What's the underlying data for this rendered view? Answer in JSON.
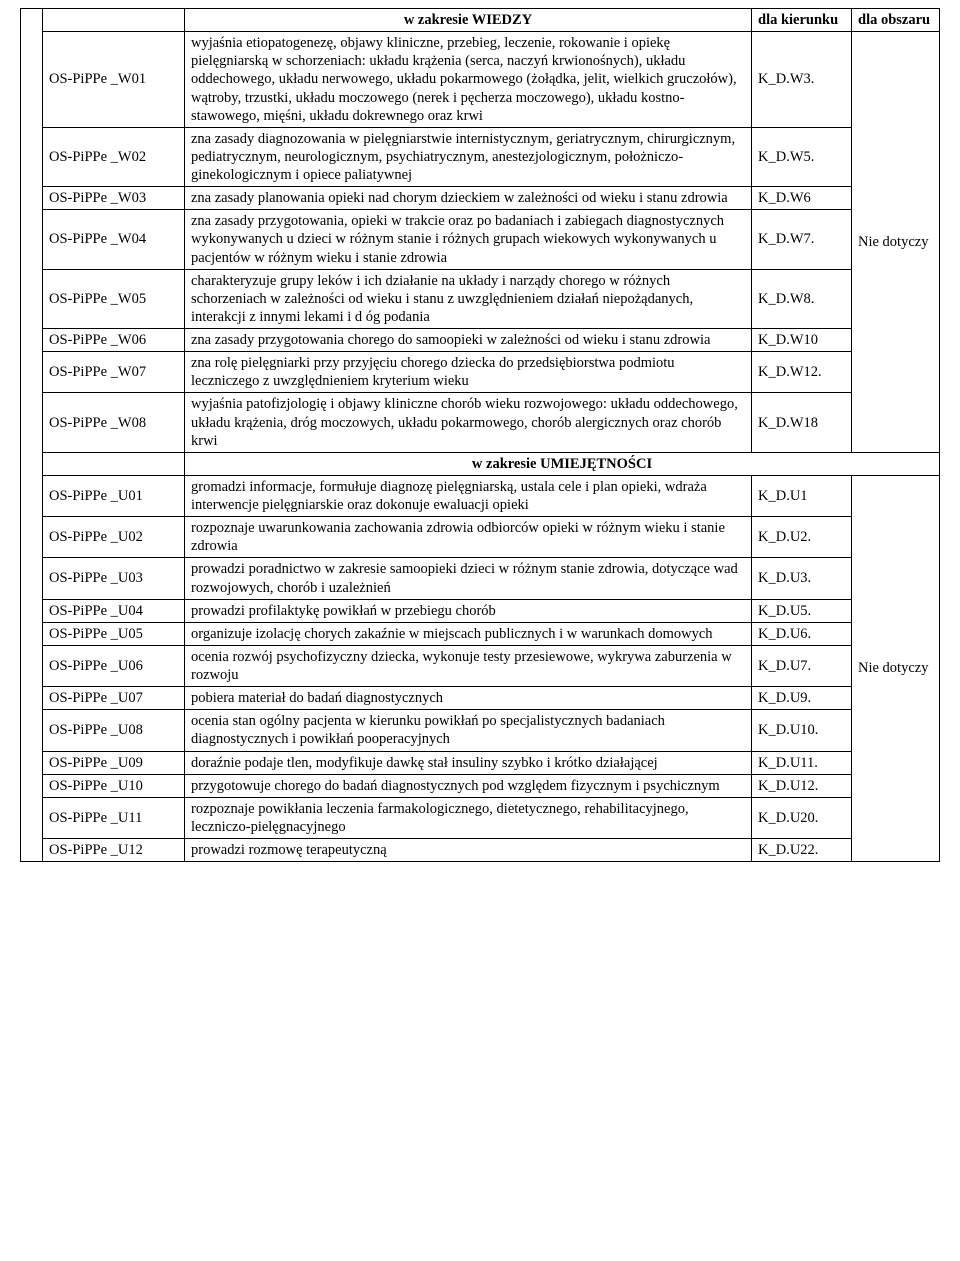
{
  "header": {
    "section1": "w zakresie WIEDZY",
    "section2": "w zakresie UMIEJĘTNOŚCI",
    "dla_kierunku": "dla kierunku",
    "dla_obszaru": "dla obszaru"
  },
  "nie_dotyczy1": "Nie dotyczy",
  "nie_dotyczy2": "Nie dotyczy",
  "w_rows": [
    {
      "code": "OS-PiPPe _W01",
      "desc": "wyjaśnia etiopatogenezę, objawy kliniczne, przebieg, leczenie, rokowanie i opiekę pielęgniarską w schorzeniach: układu krążenia (serca, naczyń krwionośnych), układu oddechowego, układu  nerwowego, układu pokarmowego (żołądka, jelit, wielkich gruczołów), wątroby, trzustki, układu moczowego (nerek i pęcherza moczowego),  układu kostno-stawowego, mięśni, układu dokrewnego oraz krwi",
      "kd": "K_D.W3."
    },
    {
      "code": "OS-PiPPe _W02",
      "desc": "zna zasady diagnozowania w pielęgniarstwie internistycznym, geriatrycznym, chirurgicznym, pediatrycznym, neurologicznym, psychiatrycznym, anestezjologicznym, położniczo- ginekologicznym i opiece paliatywnej",
      "kd": "K_D.W5."
    },
    {
      "code": "OS-PiPPe _W03",
      "desc": "zna zasady planowania opieki nad chorym dzieckiem w zależności od wieku i stanu zdrowia",
      "kd": "K_D.W6"
    },
    {
      "code": "OS-PiPPe _W04",
      "desc": "zna zasady przygotowania, opieki w trakcie oraz po badaniach i zabiegach diagnostycznych wykonywanych   u dzieci w różnym stanie i różnych grupach wiekowych wykonywanych u pacjentów w różnym wieku i stanie zdrowia",
      "kd": "K_D.W7."
    },
    {
      "code": "OS-PiPPe _W05",
      "desc": "charakteryzuje grupy leków i ich działanie na układy i narządy chorego w różnych schorzeniach w zależności   od wieku i stanu z uwzględnieniem działań niepożądanych, interakcji z innymi lekami i d   óg podania",
      "kd": "K_D.W8."
    },
    {
      "code": "OS-PiPPe _W06",
      "desc": "zna zasady przygotowania chorego do samoopieki w zależności od wieku i stanu zdrowia",
      "kd": "K_D.W10"
    },
    {
      "code": "OS-PiPPe _W07",
      "desc": "zna rolę pielęgniarki przy przyjęciu chorego dziecka do przedsiębiorstwa podmiotu leczniczego z uwzględnieniem   kryterium wieku",
      "kd": "K_D.W12."
    },
    {
      "code": "OS-PiPPe _W08",
      "desc": "wyjaśnia patofizjologię i objawy kliniczne chorób wieku rozwojowego: układu oddechowego, układu krążenia, dróg moczowych, układu pokarmowego, chorób alergicznych oraz chorób krwi",
      "kd": "K_D.W18"
    }
  ],
  "u_rows": [
    {
      "code": "OS-PiPPe _U01",
      "desc": "gromadzi informacje, formułuje diagnozę pielęgniarską, ustala cele i plan opieki, wdraża interwencje pielęgniarskie oraz dokonuje    ewaluacji opieki",
      "kd": "K_D.U1"
    },
    {
      "code": "OS-PiPPe _U02",
      "desc": "rozpoznaje uwarunkowania zachowania zdrowia odbiorców opieki w różnym wieku i stanie zdrowia",
      "kd": "K_D.U2."
    },
    {
      "code": "OS-PiPPe _U03",
      "desc": "prowadzi poradnictwo w zakresie samoopieki dzieci w różnym stanie zdrowia, dotyczące wad rozwojowych, chorób i uzależnień",
      "kd": "K_D.U3."
    },
    {
      "code": "OS-PiPPe _U04",
      "desc": "prowadzi profilaktykę powikłań w przebiegu chorób",
      "kd": "K_D.U5."
    },
    {
      "code": "OS-PiPPe _U05",
      "desc": "organizuje izolację chorych zakaźnie w miejscach publicznych i w warunkach domowych",
      "kd": "K_D.U6."
    },
    {
      "code": "OS-PiPPe _U06",
      "desc": "ocenia rozwój psychofizyczny dziecka, wykonuje testy przesiewowe, wykrywa zaburzenia w rozwoju",
      "kd": "K_D.U7."
    },
    {
      "code": "OS-PiPPe _U07",
      "desc": "pobiera materiał do badań diagnostycznych",
      "kd": "K_D.U9."
    },
    {
      "code": "OS-PiPPe _U08",
      "desc": "ocenia stan ogólny pacjenta w kierunku powikłań po specjalistycznych badaniach diagnostycznych i powikłań pooperacyjnych",
      "kd": "K_D.U10."
    },
    {
      "code": "OS-PiPPe _U09",
      "desc": "doraźnie podaje tlen, modyfikuje dawkę stał    insuliny szybko i krótko działającej",
      "kd": "K_D.U11."
    },
    {
      "code": "OS-PiPPe _U10",
      "desc": "przygotowuje chorego do badań diagnostycznych pod względem fizycznym i psychicznym",
      "kd": "K_D.U12."
    },
    {
      "code": "OS-PiPPe _U11",
      "desc": "rozpoznaje powikłania leczenia farmakologicznego, dietetycznego, rehabilitacyjnego, leczniczo-pielęgnacyjnego",
      "kd": "K_D.U20."
    },
    {
      "code": "OS-PiPPe _U12",
      "desc": "prowadzi rozmowę terapeutyczną",
      "kd": "K_D.U22."
    }
  ]
}
